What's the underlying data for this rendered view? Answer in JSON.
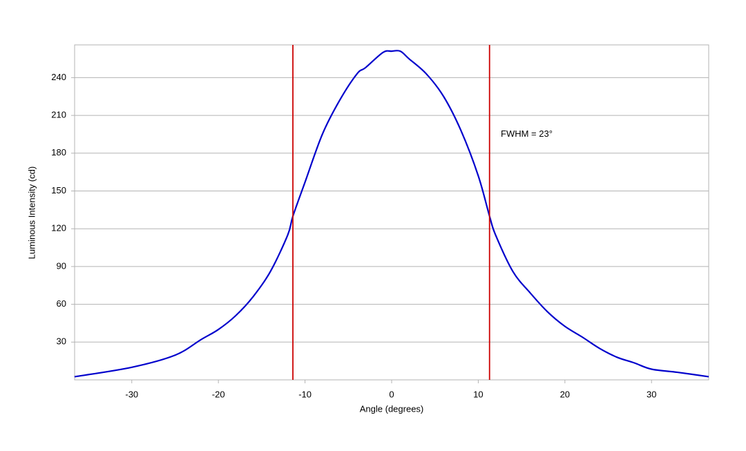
{
  "chart_data": {
    "type": "line",
    "x_label": "Angle (degrees)",
    "y_label": "Luminous Intensity (cd)",
    "x": [
      -36.6,
      -30,
      -25,
      -22,
      -20,
      -18,
      -16,
      -14,
      -12,
      -11.4,
      -10,
      -8,
      -6,
      -4,
      -3,
      -1,
      0,
      1,
      2,
      4,
      6,
      8,
      10,
      11.3,
      12,
      14,
      16,
      18,
      20,
      22,
      24,
      26,
      28,
      30,
      33,
      36.6
    ],
    "series": [
      {
        "color": "#0000cc",
        "values": [
          2.5,
          10,
          19.6,
          32,
          40,
          51,
          66,
          86,
          115,
          130,
          157,
          195,
          222,
          243,
          248,
          260,
          261,
          261,
          255,
          243,
          225,
          198,
          162,
          130,
          115,
          86,
          69,
          54,
          42.5,
          34,
          25,
          18,
          13.5,
          8.5,
          6,
          2.5
        ]
      }
    ],
    "vertical_lines": {
      "x": [
        -11.4,
        11.3
      ],
      "color": "#cc0000"
    },
    "annotation": {
      "text": "FWHM = 23°",
      "x": 12.6,
      "y": 195
    },
    "xlim": [
      -36.6,
      36.6
    ],
    "ylim": [
      0,
      266
    ],
    "xticks": [
      -30,
      -20,
      -10,
      0,
      10,
      20,
      30
    ],
    "yticks": [
      30,
      60,
      90,
      120,
      150,
      180,
      210,
      240
    ],
    "grid": true
  }
}
